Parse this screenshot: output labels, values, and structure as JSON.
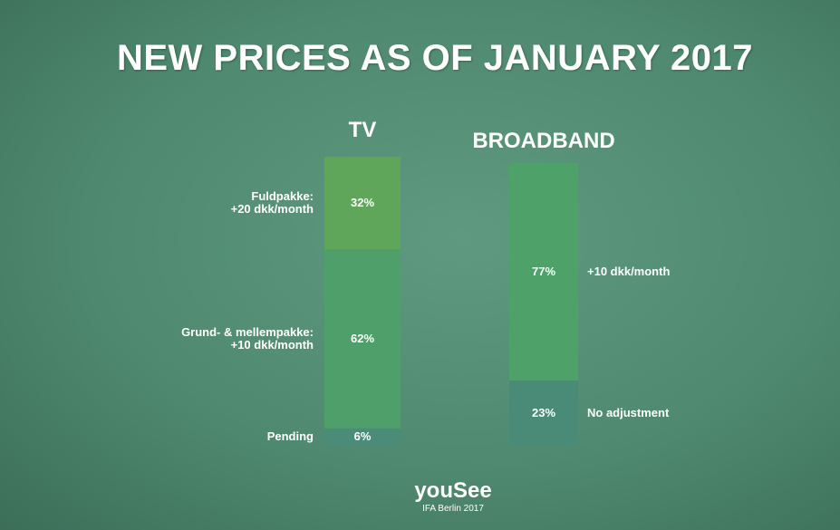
{
  "slide": {
    "title": "NEW PRICES AS OF JANUARY 2017",
    "logo": "youSee",
    "caption": "IFA Berlin 2017"
  },
  "chart_data": [
    {
      "type": "stacked-bar",
      "title": "TV",
      "series": [
        {
          "name": "Fuldpakke:\n+20 dkk/month",
          "color": "#5fa55a",
          "values": [
            32
          ],
          "value_labels": [
            "32%"
          ]
        },
        {
          "name": "Grund- & mellempakke:\n+10 dkk/month",
          "color": "#4f9f6b",
          "values": [
            62
          ],
          "value_labels": [
            "62%"
          ]
        },
        {
          "name": "Pending",
          "color": "#4a8c78",
          "values": [
            6
          ],
          "value_labels": [
            "6%"
          ]
        }
      ]
    },
    {
      "type": "stacked-bar",
      "title": "BROADBAND",
      "series": [
        {
          "name": "+10 dkk/month",
          "color": "#4ea269",
          "values": [
            77
          ],
          "value_labels": [
            "77%"
          ]
        },
        {
          "name": "No adjustment",
          "color": "#4a8b78",
          "values": [
            23
          ],
          "value_labels": [
            "23%"
          ]
        }
      ]
    }
  ]
}
